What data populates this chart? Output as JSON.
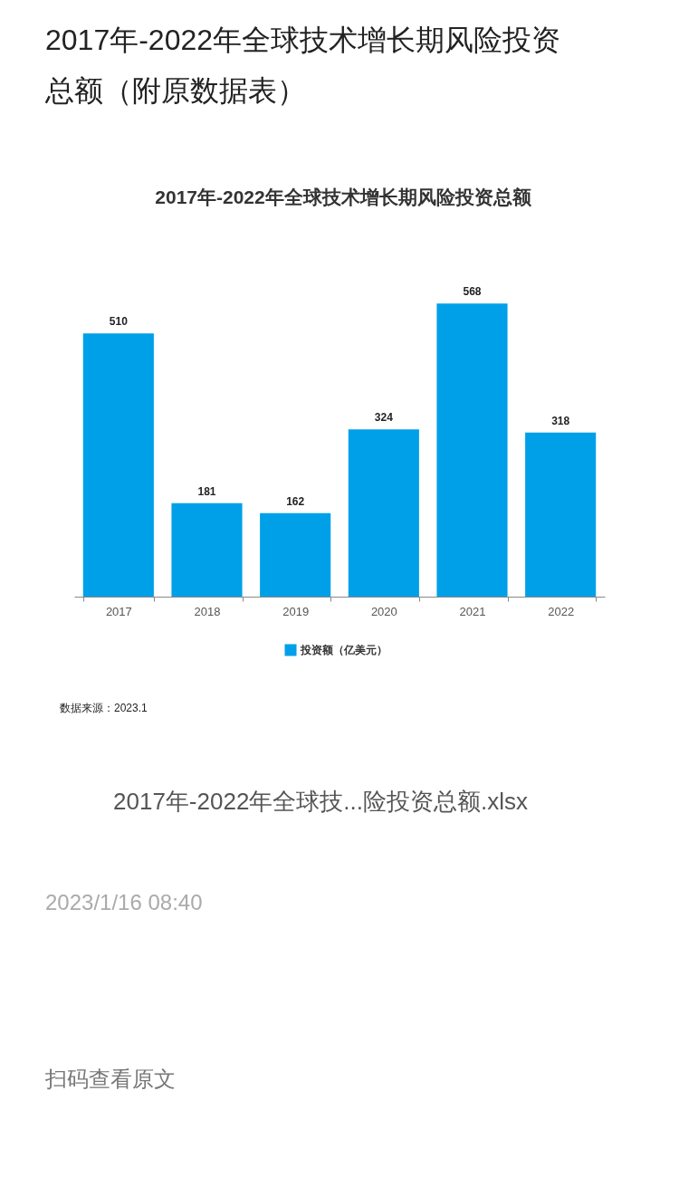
{
  "chart_data": {
    "type": "bar",
    "title": "2017年-2022年全球技术增长期风险投资总额（附原数据表）",
    "subtitle": "2017年-2022年全球技术增长期风险投资总额",
    "categories": [
      "2017",
      "2018",
      "2019",
      "2020",
      "2021",
      "2022"
    ],
    "series": [
      {
        "name": "投资额（亿美元）",
        "color": "#00a0e9",
        "values": [
          510,
          181,
          162,
          324,
          568,
          318
        ]
      }
    ],
    "data_labels": true,
    "legend": "bottom",
    "annotations": [
      "数据来源：2023.1",
      "2017年-2022年全球技...险投资总额.xlsx",
      "2023/1/16 08:40",
      "扫码查看原文"
    ]
  }
}
